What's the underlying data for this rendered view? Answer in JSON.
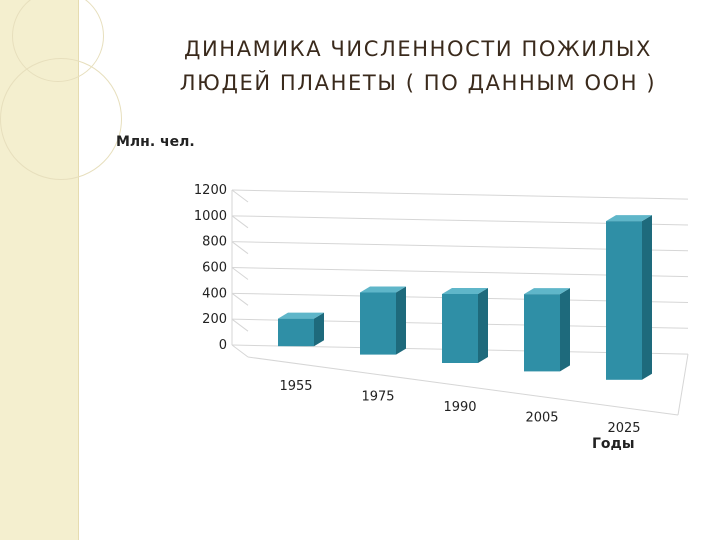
{
  "slide": {
    "title_line1": "ДИНАМИКА ЧИСЛЕННОСТИ ПОЖИЛЫХ",
    "title_line2": "ЛЮДЕЙ ПЛАНЕТЫ ( ПО ДАННЫМ ООН )"
  },
  "chart_data": {
    "type": "bar",
    "title": "",
    "ylabel": "Млн. чел.",
    "xlabel": "Годы",
    "categories": [
      "1955",
      "1975",
      "1990",
      "2005",
      "2025"
    ],
    "values": [
      200,
      450,
      500,
      560,
      1150
    ],
    "ylim": [
      0,
      1200
    ],
    "yticks": [
      "0",
      "200",
      "400",
      "600",
      "800",
      "1000",
      "1200"
    ],
    "legend": "none",
    "grid": true,
    "bar_color": "#2f8fa6",
    "bar_side_color": "#1e6a7c",
    "bar_top_color": "#5fb6c9"
  },
  "colors": {
    "strip": "#f4efcf",
    "title": "#3a2a1c",
    "grid": "#d6d6d6"
  }
}
